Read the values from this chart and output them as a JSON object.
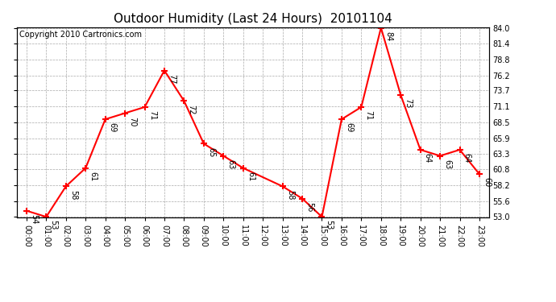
{
  "title": "Outdoor Humidity (Last 24 Hours)  20101104",
  "copyright": "Copyright 2010 Cartronics.com",
  "x_indices": [
    0,
    1,
    2,
    3,
    4,
    5,
    6,
    7,
    8,
    9,
    10,
    11,
    13,
    14,
    15,
    16,
    17,
    18,
    19,
    20,
    21,
    22,
    23
  ],
  "y_values": [
    54,
    53,
    58,
    61,
    69,
    70,
    71,
    77,
    72,
    65,
    63,
    61,
    58,
    56,
    53,
    69,
    71,
    84,
    73,
    64,
    63,
    64,
    60
  ],
  "ylim": [
    53.0,
    84.0
  ],
  "yticks": [
    53.0,
    55.6,
    58.2,
    60.8,
    63.3,
    65.9,
    68.5,
    71.1,
    73.7,
    76.2,
    78.8,
    81.4,
    84.0
  ],
  "line_color": "red",
  "marker": "+",
  "marker_color": "red",
  "marker_size": 6,
  "marker_linewidth": 1.5,
  "line_width": 1.5,
  "background_color": "#ffffff",
  "plot_bg_color": "#ffffff",
  "grid_color": "#aaaaaa",
  "grid_style": "--",
  "title_fontsize": 11,
  "label_fontsize": 7,
  "annotation_fontsize": 7,
  "copyright_fontsize": 7,
  "xlim": [
    -0.5,
    23.5
  ]
}
